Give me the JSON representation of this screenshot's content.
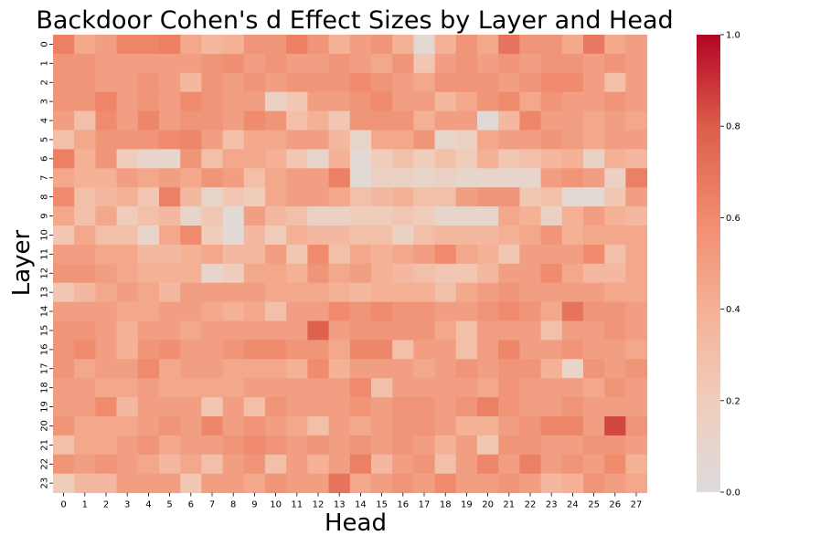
{
  "chart_data": {
    "type": "heatmap",
    "title": "Backdoor Cohen's d Effect Sizes by Layer and Head",
    "xlabel": "Head",
    "ylabel": "Layer",
    "x_categories": [
      "0",
      "1",
      "2",
      "3",
      "4",
      "5",
      "6",
      "7",
      "8",
      "9",
      "10",
      "11",
      "12",
      "13",
      "14",
      "15",
      "16",
      "17",
      "18",
      "19",
      "20",
      "21",
      "22",
      "23",
      "24",
      "25",
      "26",
      "27"
    ],
    "y_categories": [
      "0",
      "1",
      "2",
      "3",
      "4",
      "5",
      "6",
      "7",
      "8",
      "9",
      "10",
      "11",
      "12",
      "13",
      "14",
      "15",
      "16",
      "17",
      "18",
      "19",
      "20",
      "21",
      "22",
      "23"
    ],
    "colorbar": {
      "min": 0.0,
      "max": 1.0,
      "ticks": [
        "0.0",
        "0.2",
        "0.4",
        "0.6",
        "0.8",
        "1.0"
      ],
      "colormap": "coolwarm (upper half)",
      "low_color": "#dddcdc",
      "mid_color": "#f4987a",
      "high_color": "#b40426"
    },
    "values": [
      [
        0.65,
        0.45,
        0.5,
        0.62,
        0.62,
        0.65,
        0.45,
        0.35,
        0.4,
        0.55,
        0.55,
        0.65,
        0.55,
        0.4,
        0.5,
        0.55,
        0.4,
        0.05,
        0.4,
        0.55,
        0.45,
        0.7,
        0.55,
        0.55,
        0.45,
        0.68,
        0.45,
        0.5
      ],
      [
        0.55,
        0.55,
        0.5,
        0.5,
        0.5,
        0.5,
        0.5,
        0.55,
        0.58,
        0.5,
        0.55,
        0.5,
        0.5,
        0.55,
        0.5,
        0.45,
        0.55,
        0.25,
        0.5,
        0.55,
        0.5,
        0.55,
        0.5,
        0.55,
        0.55,
        0.5,
        0.55,
        0.5
      ],
      [
        0.55,
        0.55,
        0.5,
        0.5,
        0.55,
        0.5,
        0.35,
        0.55,
        0.5,
        0.55,
        0.5,
        0.55,
        0.55,
        0.55,
        0.6,
        0.55,
        0.5,
        0.45,
        0.55,
        0.55,
        0.55,
        0.5,
        0.55,
        0.6,
        0.6,
        0.5,
        0.3,
        0.5
      ],
      [
        0.55,
        0.55,
        0.62,
        0.5,
        0.55,
        0.5,
        0.6,
        0.55,
        0.5,
        0.5,
        0.15,
        0.25,
        0.5,
        0.5,
        0.55,
        0.6,
        0.5,
        0.5,
        0.35,
        0.45,
        0.55,
        0.6,
        0.45,
        0.55,
        0.5,
        0.5,
        0.55,
        0.5
      ],
      [
        0.5,
        0.3,
        0.6,
        0.5,
        0.62,
        0.5,
        0.55,
        0.55,
        0.5,
        0.6,
        0.55,
        0.3,
        0.4,
        0.25,
        0.55,
        0.55,
        0.55,
        0.4,
        0.5,
        0.5,
        0.05,
        0.35,
        0.62,
        0.5,
        0.5,
        0.45,
        0.5,
        0.45
      ],
      [
        0.3,
        0.45,
        0.55,
        0.55,
        0.55,
        0.6,
        0.62,
        0.5,
        0.3,
        0.45,
        0.45,
        0.5,
        0.5,
        0.35,
        0.1,
        0.45,
        0.45,
        0.55,
        0.1,
        0.15,
        0.45,
        0.5,
        0.5,
        0.55,
        0.5,
        0.45,
        0.5,
        0.5
      ],
      [
        0.65,
        0.4,
        0.55,
        0.2,
        0.1,
        0.1,
        0.55,
        0.3,
        0.45,
        0.45,
        0.4,
        0.25,
        0.1,
        0.4,
        0.05,
        0.2,
        0.3,
        0.2,
        0.3,
        0.2,
        0.4,
        0.25,
        0.3,
        0.35,
        0.4,
        0.15,
        0.4,
        0.35
      ],
      [
        0.45,
        0.4,
        0.4,
        0.5,
        0.45,
        0.5,
        0.45,
        0.55,
        0.5,
        0.3,
        0.45,
        0.5,
        0.5,
        0.65,
        0.05,
        0.15,
        0.15,
        0.1,
        0.15,
        0.1,
        0.1,
        0.1,
        0.1,
        0.5,
        0.55,
        0.5,
        0.15,
        0.65
      ],
      [
        0.6,
        0.3,
        0.35,
        0.4,
        0.25,
        0.65,
        0.35,
        0.1,
        0.25,
        0.2,
        0.45,
        0.5,
        0.5,
        0.45,
        0.3,
        0.35,
        0.4,
        0.3,
        0.3,
        0.5,
        0.55,
        0.55,
        0.25,
        0.3,
        0.05,
        0.05,
        0.25,
        0.5
      ],
      [
        0.45,
        0.3,
        0.45,
        0.2,
        0.3,
        0.35,
        0.1,
        0.25,
        0.05,
        0.5,
        0.35,
        0.3,
        0.15,
        0.15,
        0.2,
        0.2,
        0.25,
        0.2,
        0.1,
        0.1,
        0.1,
        0.45,
        0.4,
        0.15,
        0.4,
        0.5,
        0.4,
        0.35
      ],
      [
        0.25,
        0.45,
        0.3,
        0.3,
        0.1,
        0.45,
        0.6,
        0.2,
        0.05,
        0.35,
        0.2,
        0.4,
        0.35,
        0.35,
        0.3,
        0.3,
        0.15,
        0.3,
        0.35,
        0.35,
        0.35,
        0.4,
        0.45,
        0.55,
        0.4,
        0.45,
        0.45,
        0.45
      ],
      [
        0.5,
        0.5,
        0.45,
        0.45,
        0.35,
        0.35,
        0.4,
        0.45,
        0.35,
        0.35,
        0.5,
        0.25,
        0.6,
        0.3,
        0.45,
        0.4,
        0.45,
        0.5,
        0.6,
        0.45,
        0.4,
        0.25,
        0.5,
        0.5,
        0.5,
        0.6,
        0.3,
        0.45
      ],
      [
        0.55,
        0.55,
        0.5,
        0.45,
        0.4,
        0.4,
        0.4,
        0.1,
        0.2,
        0.45,
        0.45,
        0.4,
        0.55,
        0.45,
        0.5,
        0.4,
        0.35,
        0.3,
        0.25,
        0.25,
        0.35,
        0.5,
        0.5,
        0.6,
        0.45,
        0.35,
        0.35,
        0.45
      ],
      [
        0.25,
        0.35,
        0.45,
        0.5,
        0.45,
        0.35,
        0.5,
        0.5,
        0.5,
        0.5,
        0.45,
        0.45,
        0.45,
        0.4,
        0.35,
        0.4,
        0.4,
        0.4,
        0.3,
        0.45,
        0.5,
        0.55,
        0.5,
        0.5,
        0.5,
        0.5,
        0.45,
        0.45
      ],
      [
        0.5,
        0.5,
        0.5,
        0.45,
        0.45,
        0.5,
        0.5,
        0.45,
        0.4,
        0.45,
        0.3,
        0.5,
        0.5,
        0.6,
        0.55,
        0.6,
        0.55,
        0.55,
        0.5,
        0.5,
        0.55,
        0.6,
        0.55,
        0.45,
        0.7,
        0.55,
        0.55,
        0.5
      ],
      [
        0.55,
        0.55,
        0.5,
        0.4,
        0.5,
        0.5,
        0.45,
        0.5,
        0.5,
        0.5,
        0.5,
        0.5,
        0.78,
        0.5,
        0.55,
        0.55,
        0.55,
        0.55,
        0.45,
        0.3,
        0.5,
        0.5,
        0.5,
        0.3,
        0.5,
        0.5,
        0.55,
        0.5
      ],
      [
        0.55,
        0.6,
        0.5,
        0.4,
        0.55,
        0.58,
        0.5,
        0.5,
        0.55,
        0.6,
        0.6,
        0.55,
        0.55,
        0.45,
        0.62,
        0.62,
        0.3,
        0.5,
        0.5,
        0.3,
        0.5,
        0.62,
        0.5,
        0.5,
        0.55,
        0.5,
        0.5,
        0.45
      ],
      [
        0.55,
        0.45,
        0.5,
        0.5,
        0.6,
        0.45,
        0.5,
        0.5,
        0.45,
        0.45,
        0.45,
        0.4,
        0.6,
        0.4,
        0.5,
        0.5,
        0.5,
        0.45,
        0.5,
        0.55,
        0.5,
        0.55,
        0.55,
        0.4,
        0.1,
        0.55,
        0.5,
        0.55
      ],
      [
        0.5,
        0.5,
        0.45,
        0.45,
        0.5,
        0.45,
        0.45,
        0.45,
        0.45,
        0.5,
        0.5,
        0.5,
        0.5,
        0.5,
        0.6,
        0.3,
        0.5,
        0.5,
        0.5,
        0.5,
        0.45,
        0.55,
        0.5,
        0.5,
        0.5,
        0.45,
        0.55,
        0.5
      ],
      [
        0.5,
        0.5,
        0.6,
        0.35,
        0.5,
        0.5,
        0.5,
        0.25,
        0.5,
        0.3,
        0.55,
        0.5,
        0.5,
        0.5,
        0.55,
        0.5,
        0.55,
        0.55,
        0.5,
        0.55,
        0.65,
        0.55,
        0.5,
        0.5,
        0.55,
        0.5,
        0.5,
        0.5
      ],
      [
        0.55,
        0.45,
        0.45,
        0.45,
        0.5,
        0.55,
        0.5,
        0.62,
        0.5,
        0.55,
        0.5,
        0.45,
        0.3,
        0.5,
        0.45,
        0.5,
        0.55,
        0.55,
        0.5,
        0.4,
        0.4,
        0.5,
        0.55,
        0.62,
        0.62,
        0.5,
        0.85,
        0.55
      ],
      [
        0.3,
        0.45,
        0.45,
        0.5,
        0.55,
        0.45,
        0.5,
        0.5,
        0.55,
        0.6,
        0.55,
        0.5,
        0.55,
        0.5,
        0.55,
        0.5,
        0.55,
        0.5,
        0.4,
        0.5,
        0.25,
        0.55,
        0.55,
        0.5,
        0.5,
        0.55,
        0.55,
        0.5
      ],
      [
        0.55,
        0.5,
        0.55,
        0.5,
        0.45,
        0.35,
        0.45,
        0.3,
        0.5,
        0.55,
        0.3,
        0.5,
        0.4,
        0.5,
        0.65,
        0.35,
        0.5,
        0.55,
        0.3,
        0.5,
        0.62,
        0.5,
        0.65,
        0.5,
        0.55,
        0.5,
        0.6,
        0.4
      ],
      [
        0.2,
        0.35,
        0.35,
        0.5,
        0.5,
        0.5,
        0.25,
        0.5,
        0.5,
        0.45,
        0.55,
        0.5,
        0.5,
        0.7,
        0.45,
        0.5,
        0.55,
        0.5,
        0.6,
        0.5,
        0.5,
        0.55,
        0.5,
        0.35,
        0.4,
        0.55,
        0.5,
        0.45
      ]
    ]
  }
}
